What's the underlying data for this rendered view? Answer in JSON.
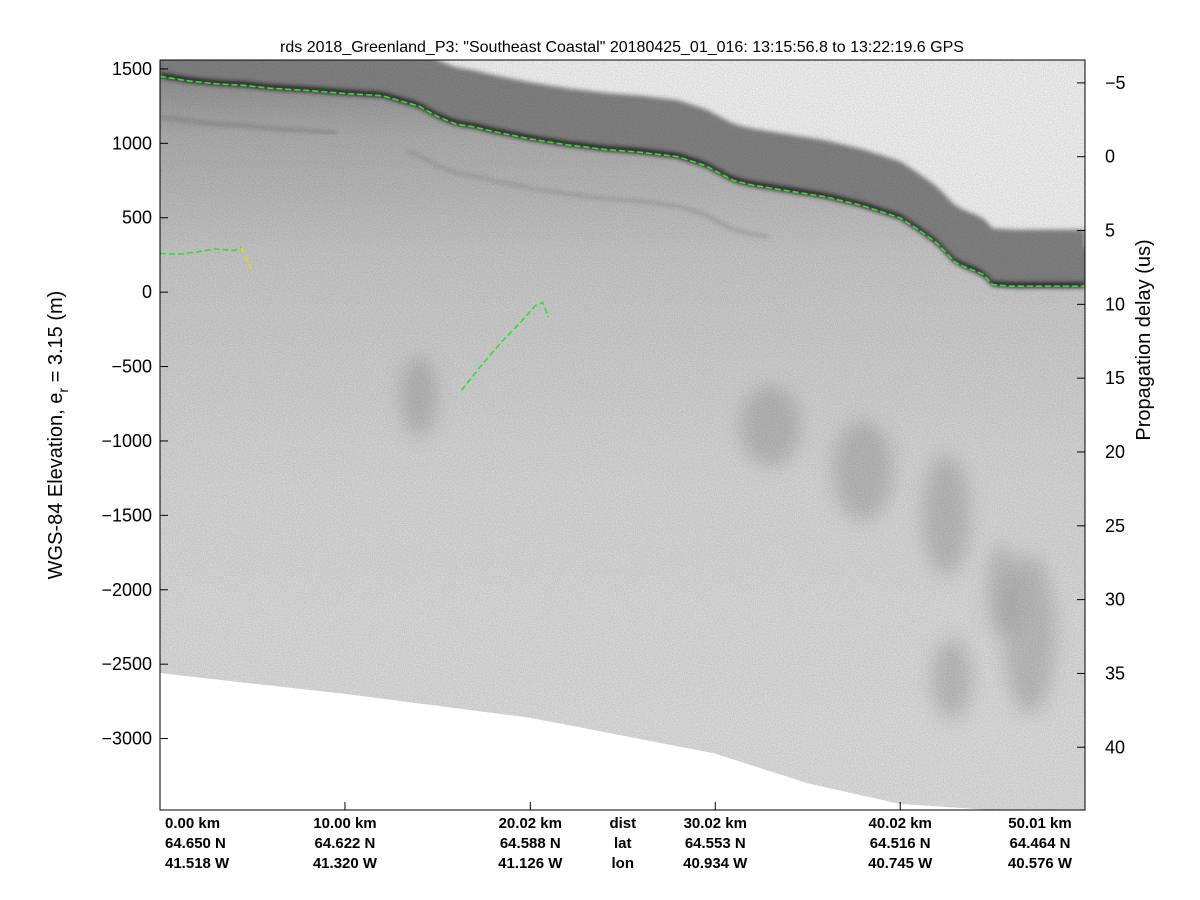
{
  "chart_data": {
    "type": "line",
    "title": "rds 2018_Greenland_P3: \"Southeast Coastal\"  20180425_01_016: 13:15:56.8 to 13:22:19.6 GPS",
    "ylabel": {
      "main": "WGS-84 Elevation, e",
      "subscript": "r",
      "suffix": " = 3.15 (m)"
    },
    "y2label": "Propagation delay (us)",
    "ylim": [
      -3480,
      1560
    ],
    "y2lim": [
      -6.55,
      44.25
    ],
    "xlim": [
      0,
      50.01
    ],
    "y_ticks": [
      1500,
      1000,
      500,
      0,
      -500,
      -1000,
      -1500,
      -2000,
      -2500,
      -3000
    ],
    "y_tick_labels": [
      "1500",
      "1000",
      "500",
      "0",
      "−500",
      "−1000",
      "−1500",
      "−2000",
      "−2500",
      "−3000"
    ],
    "y2_ticks": [
      -5,
      0,
      5,
      10,
      15,
      20,
      25,
      30,
      35,
      40
    ],
    "y2_tick_labels": [
      "−5",
      "0",
      "5",
      "10",
      "15",
      "20",
      "25",
      "30",
      "35",
      "40"
    ],
    "x_ticks": [
      0,
      10,
      20.02,
      30.02,
      40.02,
      50.01
    ],
    "grid": false,
    "footer": {
      "row_labels": {
        "dist": "dist",
        "lat": "lat",
        "lon": "lon"
      },
      "columns": [
        {
          "dist": "0.00 km",
          "lat": "64.650 N",
          "lon": "41.518 W"
        },
        {
          "dist": "10.00 km",
          "lat": "64.622 N",
          "lon": "41.320 W"
        },
        {
          "dist": "20.02 km",
          "lat": "64.588 N",
          "lon": "41.126 W"
        },
        {
          "dist": "30.02 km",
          "lat": "64.553 N",
          "lon": "40.934 W"
        },
        {
          "dist": "40.02 km",
          "lat": "64.516 N",
          "lon": "40.745 W"
        },
        {
          "dist": "50.01 km",
          "lat": "64.464 N",
          "lon": "40.576 W"
        }
      ]
    },
    "series": [
      {
        "role": "surface",
        "color": "#33dd33",
        "style": "dashed",
        "x": [
          0,
          1.5,
          3,
          4.5,
          6,
          8,
          10,
          12,
          14,
          15,
          16,
          17,
          18,
          20,
          22,
          24,
          26,
          28,
          29.5,
          31,
          32,
          34,
          36,
          38,
          40,
          41,
          42,
          43,
          43.5,
          44.5,
          45,
          46,
          48,
          50
        ],
        "y": [
          1450,
          1420,
          1400,
          1390,
          1370,
          1355,
          1335,
          1320,
          1250,
          1180,
          1130,
          1110,
          1080,
          1030,
          990,
          960,
          940,
          910,
          850,
          750,
          720,
          680,
          640,
          580,
          500,
          420,
          330,
          200,
          170,
          120,
          50,
          40,
          40,
          40
        ]
      },
      {
        "role": "bed",
        "color": "#33dd33",
        "style": "dashed",
        "x": [
          16.3,
          17,
          17.8,
          18.5,
          19.2,
          19.8,
          20.3,
          20.7,
          21
        ],
        "y": [
          -660,
          -550,
          -430,
          -330,
          -240,
          -160,
          -90,
          -70,
          -170
        ]
      },
      {
        "role": "bed",
        "color": "#33dd33",
        "style": "dashed",
        "x": [
          0,
          1,
          2,
          3,
          4,
          4.4
        ],
        "y": [
          260,
          255,
          270,
          290,
          280,
          300
        ]
      },
      {
        "role": "bed-uncertain",
        "color": "#dddd00",
        "style": "dashed",
        "x": [
          4.4,
          4.7,
          4.9
        ],
        "y": [
          300,
          220,
          160
        ]
      }
    ],
    "echogram": {
      "colormap": "grayscale",
      "data_bottom_edge": {
        "x": [
          0,
          10,
          20,
          30,
          35,
          40,
          50
        ],
        "y": [
          -2560,
          -2700,
          -2860,
          -3100,
          -3300,
          -3440,
          -3520
        ]
      }
    }
  }
}
